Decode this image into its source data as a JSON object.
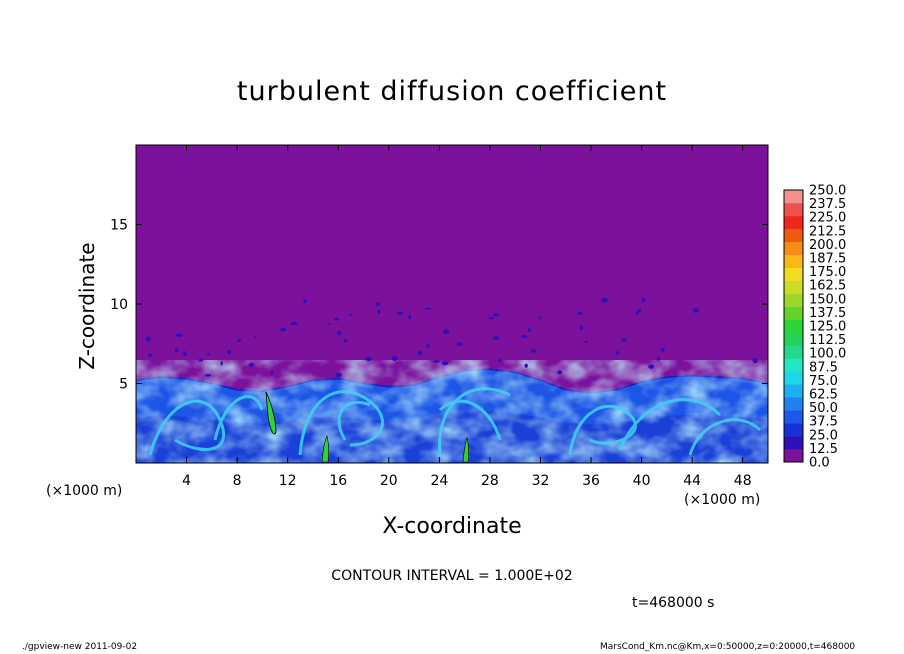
{
  "chart_data": {
    "type": "heatmap",
    "title": "turbulent diffusion coefficient",
    "xlabel": "X-coordinate",
    "ylabel": "Z-coordinate",
    "x_unit_label": "(×1000 m)",
    "xlim": [
      0,
      50
    ],
    "ylim": [
      0,
      20
    ],
    "x_ticks": [
      4,
      8,
      12,
      16,
      20,
      24,
      28,
      32,
      36,
      40,
      44,
      48
    ],
    "y_ticks": [
      5,
      10,
      15
    ],
    "colorbar_levels": [
      "0.0",
      "12.5",
      "25.0",
      "37.5",
      "50.0",
      "62.5",
      "75.0",
      "87.5",
      "100.0",
      "112.5",
      "125.0",
      "137.5",
      "150.0",
      "162.5",
      "175.0",
      "187.5",
      "200.0",
      "212.5",
      "225.0",
      "237.5",
      "250.0"
    ],
    "colorbar_colors": [
      "#7c119c",
      "#2c10b8",
      "#1a2fd8",
      "#1c58ea",
      "#1f82f0",
      "#1cb0f2",
      "#1cd8e8",
      "#20e8c0",
      "#22d88a",
      "#24d25a",
      "#2cd438",
      "#62d42a",
      "#9cd82a",
      "#ccdc28",
      "#f0dc20",
      "#f8b818",
      "#f88c14",
      "#f05a10",
      "#f0281c",
      "#f05050",
      "#f49090"
    ],
    "background_color": "#7c119c",
    "boundary_layer_top_km": [
      5.2,
      5.4,
      5.3,
      5.0,
      4.6,
      4.5,
      4.8,
      5.2,
      5.3,
      5.0,
      4.8,
      4.9,
      5.4,
      5.8,
      5.9,
      5.7,
      5.2,
      4.6,
      4.4,
      4.6,
      5.1,
      5.4,
      5.5,
      5.4,
      5.3,
      5.0
    ]
  },
  "contour_interval": "CONTOUR INTERVAL = 1.000E+02",
  "time_label": "t=468000 s",
  "footer": {
    "left": "./gpview-new   2011-09-02",
    "right": "MarsCond_Km.nc@Km,x=0:50000,z=0:20000,t=468000"
  }
}
